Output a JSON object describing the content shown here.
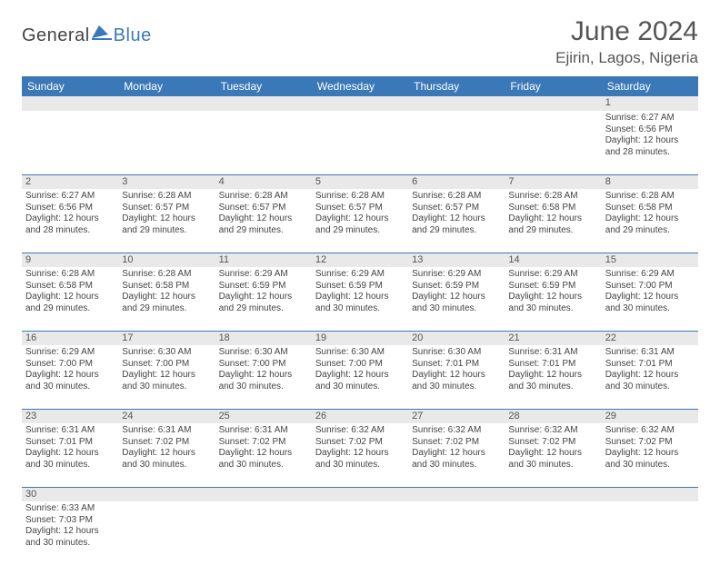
{
  "brand": {
    "general": "General",
    "blue": "Blue"
  },
  "title": "June 2024",
  "location": "Ejirin, Lagos, Nigeria",
  "colors": {
    "header_bg": "#3b78b8",
    "header_text": "#ffffff",
    "daynum_bg": "#e9e9e9",
    "text": "#444444",
    "rule": "#3b78b8"
  },
  "typography": {
    "title_fontsize": 30,
    "location_fontsize": 17,
    "header_fontsize": 12,
    "cell_fontsize": 10
  },
  "day_headers": [
    "Sunday",
    "Monday",
    "Tuesday",
    "Wednesday",
    "Thursday",
    "Friday",
    "Saturday"
  ],
  "weeks": [
    [
      null,
      null,
      null,
      null,
      null,
      null,
      {
        "n": "1",
        "sr": "Sunrise: 6:27 AM",
        "ss": "Sunset: 6:56 PM",
        "d1": "Daylight: 12 hours",
        "d2": "and 28 minutes."
      }
    ],
    [
      {
        "n": "2",
        "sr": "Sunrise: 6:27 AM",
        "ss": "Sunset: 6:56 PM",
        "d1": "Daylight: 12 hours",
        "d2": "and 28 minutes."
      },
      {
        "n": "3",
        "sr": "Sunrise: 6:28 AM",
        "ss": "Sunset: 6:57 PM",
        "d1": "Daylight: 12 hours",
        "d2": "and 29 minutes."
      },
      {
        "n": "4",
        "sr": "Sunrise: 6:28 AM",
        "ss": "Sunset: 6:57 PM",
        "d1": "Daylight: 12 hours",
        "d2": "and 29 minutes."
      },
      {
        "n": "5",
        "sr": "Sunrise: 6:28 AM",
        "ss": "Sunset: 6:57 PM",
        "d1": "Daylight: 12 hours",
        "d2": "and 29 minutes."
      },
      {
        "n": "6",
        "sr": "Sunrise: 6:28 AM",
        "ss": "Sunset: 6:57 PM",
        "d1": "Daylight: 12 hours",
        "d2": "and 29 minutes."
      },
      {
        "n": "7",
        "sr": "Sunrise: 6:28 AM",
        "ss": "Sunset: 6:58 PM",
        "d1": "Daylight: 12 hours",
        "d2": "and 29 minutes."
      },
      {
        "n": "8",
        "sr": "Sunrise: 6:28 AM",
        "ss": "Sunset: 6:58 PM",
        "d1": "Daylight: 12 hours",
        "d2": "and 29 minutes."
      }
    ],
    [
      {
        "n": "9",
        "sr": "Sunrise: 6:28 AM",
        "ss": "Sunset: 6:58 PM",
        "d1": "Daylight: 12 hours",
        "d2": "and 29 minutes."
      },
      {
        "n": "10",
        "sr": "Sunrise: 6:28 AM",
        "ss": "Sunset: 6:58 PM",
        "d1": "Daylight: 12 hours",
        "d2": "and 29 minutes."
      },
      {
        "n": "11",
        "sr": "Sunrise: 6:29 AM",
        "ss": "Sunset: 6:59 PM",
        "d1": "Daylight: 12 hours",
        "d2": "and 29 minutes."
      },
      {
        "n": "12",
        "sr": "Sunrise: 6:29 AM",
        "ss": "Sunset: 6:59 PM",
        "d1": "Daylight: 12 hours",
        "d2": "and 30 minutes."
      },
      {
        "n": "13",
        "sr": "Sunrise: 6:29 AM",
        "ss": "Sunset: 6:59 PM",
        "d1": "Daylight: 12 hours",
        "d2": "and 30 minutes."
      },
      {
        "n": "14",
        "sr": "Sunrise: 6:29 AM",
        "ss": "Sunset: 6:59 PM",
        "d1": "Daylight: 12 hours",
        "d2": "and 30 minutes."
      },
      {
        "n": "15",
        "sr": "Sunrise: 6:29 AM",
        "ss": "Sunset: 7:00 PM",
        "d1": "Daylight: 12 hours",
        "d2": "and 30 minutes."
      }
    ],
    [
      {
        "n": "16",
        "sr": "Sunrise: 6:29 AM",
        "ss": "Sunset: 7:00 PM",
        "d1": "Daylight: 12 hours",
        "d2": "and 30 minutes."
      },
      {
        "n": "17",
        "sr": "Sunrise: 6:30 AM",
        "ss": "Sunset: 7:00 PM",
        "d1": "Daylight: 12 hours",
        "d2": "and 30 minutes."
      },
      {
        "n": "18",
        "sr": "Sunrise: 6:30 AM",
        "ss": "Sunset: 7:00 PM",
        "d1": "Daylight: 12 hours",
        "d2": "and 30 minutes."
      },
      {
        "n": "19",
        "sr": "Sunrise: 6:30 AM",
        "ss": "Sunset: 7:00 PM",
        "d1": "Daylight: 12 hours",
        "d2": "and 30 minutes."
      },
      {
        "n": "20",
        "sr": "Sunrise: 6:30 AM",
        "ss": "Sunset: 7:01 PM",
        "d1": "Daylight: 12 hours",
        "d2": "and 30 minutes."
      },
      {
        "n": "21",
        "sr": "Sunrise: 6:31 AM",
        "ss": "Sunset: 7:01 PM",
        "d1": "Daylight: 12 hours",
        "d2": "and 30 minutes."
      },
      {
        "n": "22",
        "sr": "Sunrise: 6:31 AM",
        "ss": "Sunset: 7:01 PM",
        "d1": "Daylight: 12 hours",
        "d2": "and 30 minutes."
      }
    ],
    [
      {
        "n": "23",
        "sr": "Sunrise: 6:31 AM",
        "ss": "Sunset: 7:01 PM",
        "d1": "Daylight: 12 hours",
        "d2": "and 30 minutes."
      },
      {
        "n": "24",
        "sr": "Sunrise: 6:31 AM",
        "ss": "Sunset: 7:02 PM",
        "d1": "Daylight: 12 hours",
        "d2": "and 30 minutes."
      },
      {
        "n": "25",
        "sr": "Sunrise: 6:31 AM",
        "ss": "Sunset: 7:02 PM",
        "d1": "Daylight: 12 hours",
        "d2": "and 30 minutes."
      },
      {
        "n": "26",
        "sr": "Sunrise: 6:32 AM",
        "ss": "Sunset: 7:02 PM",
        "d1": "Daylight: 12 hours",
        "d2": "and 30 minutes."
      },
      {
        "n": "27",
        "sr": "Sunrise: 6:32 AM",
        "ss": "Sunset: 7:02 PM",
        "d1": "Daylight: 12 hours",
        "d2": "and 30 minutes."
      },
      {
        "n": "28",
        "sr": "Sunrise: 6:32 AM",
        "ss": "Sunset: 7:02 PM",
        "d1": "Daylight: 12 hours",
        "d2": "and 30 minutes."
      },
      {
        "n": "29",
        "sr": "Sunrise: 6:32 AM",
        "ss": "Sunset: 7:02 PM",
        "d1": "Daylight: 12 hours",
        "d2": "and 30 minutes."
      }
    ],
    [
      {
        "n": "30",
        "sr": "Sunrise: 6:33 AM",
        "ss": "Sunset: 7:03 PM",
        "d1": "Daylight: 12 hours",
        "d2": "and 30 minutes."
      },
      null,
      null,
      null,
      null,
      null,
      null
    ]
  ]
}
